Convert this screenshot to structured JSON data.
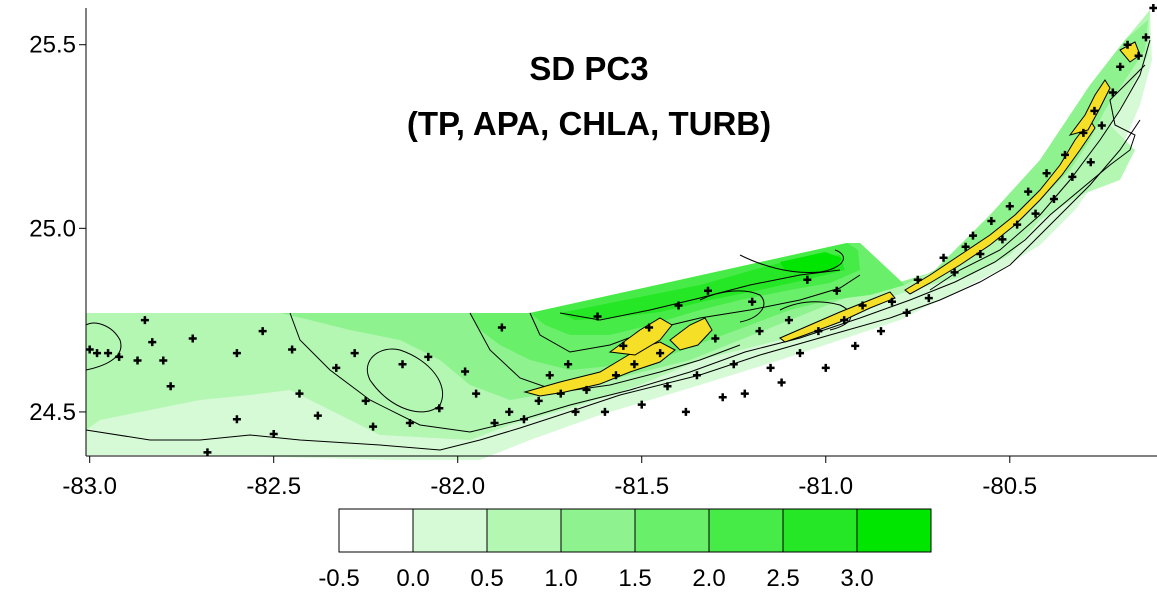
{
  "title": {
    "line1": "SD PC3",
    "line2": "(TP, APA, CHLA, TURB)"
  },
  "axes": {
    "x_ticks": [
      "-83.0",
      "-82.5",
      "-82.0",
      "-81.5",
      "-81.0",
      "-80.5"
    ],
    "x_tick_values": [
      -83.0,
      -82.5,
      -82.0,
      -81.5,
      -81.0,
      -80.5
    ],
    "y_ticks": [
      "25.5",
      "25.0",
      "24.5"
    ],
    "y_tick_values": [
      25.5,
      25.0,
      24.5
    ],
    "xlim": [
      -83.01,
      -80.1
    ],
    "ylim": [
      24.38,
      25.6
    ]
  },
  "legend": {
    "labels": [
      "-0.5",
      "0.0",
      "0.5",
      "1.0",
      "1.5",
      "2.0",
      "2.5",
      "3.0"
    ],
    "colors": [
      "#ffffff",
      "#d6fad6",
      "#b3f7b3",
      "#8ef28e",
      "#6aef6a",
      "#47eb47",
      "#25e725",
      "#00e600"
    ]
  },
  "colors": {
    "land": "#f5e027",
    "station_marker": "#000000"
  },
  "chart_data": {
    "type": "contour-map",
    "stations": [
      [
        -83.0,
        24.67
      ],
      [
        -82.98,
        24.66
      ],
      [
        -82.95,
        24.66
      ],
      [
        -82.92,
        24.65
      ],
      [
        -82.87,
        24.64
      ],
      [
        -82.85,
        24.75
      ],
      [
        -82.83,
        24.69
      ],
      [
        -82.8,
        24.64
      ],
      [
        -82.78,
        24.57
      ],
      [
        -82.72,
        24.7
      ],
      [
        -82.68,
        24.39
      ],
      [
        -82.6,
        24.66
      ],
      [
        -82.6,
        24.48
      ],
      [
        -82.53,
        24.72
      ],
      [
        -82.5,
        24.44
      ],
      [
        -82.45,
        24.67
      ],
      [
        -82.43,
        24.55
      ],
      [
        -82.38,
        24.49
      ],
      [
        -82.33,
        24.62
      ],
      [
        -82.28,
        24.66
      ],
      [
        -82.25,
        24.53
      ],
      [
        -82.23,
        24.46
      ],
      [
        -82.15,
        24.63
      ],
      [
        -82.13,
        24.47
      ],
      [
        -82.08,
        24.65
      ],
      [
        -82.05,
        24.51
      ],
      [
        -81.98,
        24.61
      ],
      [
        -81.95,
        24.55
      ],
      [
        -81.9,
        24.47
      ],
      [
        -81.88,
        24.73
      ],
      [
        -81.86,
        24.5
      ],
      [
        -81.82,
        24.48
      ],
      [
        -81.78,
        24.53
      ],
      [
        -81.75,
        24.6
      ],
      [
        -81.72,
        24.55
      ],
      [
        -81.7,
        24.63
      ],
      [
        -81.68,
        24.5
      ],
      [
        -81.65,
        24.56
      ],
      [
        -81.62,
        24.76
      ],
      [
        -81.6,
        24.5
      ],
      [
        -81.57,
        24.6
      ],
      [
        -81.55,
        24.68
      ],
      [
        -81.52,
        24.63
      ],
      [
        -81.5,
        24.52
      ],
      [
        -81.48,
        24.73
      ],
      [
        -81.45,
        24.66
      ],
      [
        -81.43,
        24.57
      ],
      [
        -81.4,
        24.79
      ],
      [
        -81.38,
        24.5
      ],
      [
        -81.35,
        24.6
      ],
      [
        -81.32,
        24.83
      ],
      [
        -81.3,
        24.7
      ],
      [
        -81.28,
        24.54
      ],
      [
        -81.25,
        24.63
      ],
      [
        -81.22,
        24.55
      ],
      [
        -81.2,
        24.8
      ],
      [
        -81.18,
        24.72
      ],
      [
        -81.15,
        24.62
      ],
      [
        -81.12,
        24.58
      ],
      [
        -81.1,
        24.75
      ],
      [
        -81.07,
        24.66
      ],
      [
        -81.05,
        24.86
      ],
      [
        -81.02,
        24.72
      ],
      [
        -81.0,
        24.62
      ],
      [
        -80.97,
        24.83
      ],
      [
        -80.95,
        24.75
      ],
      [
        -80.92,
        24.68
      ],
      [
        -80.9,
        24.79
      ],
      [
        -80.85,
        24.72
      ],
      [
        -80.82,
        24.8
      ],
      [
        -80.78,
        24.77
      ],
      [
        -80.75,
        24.86
      ],
      [
        -80.72,
        24.81
      ],
      [
        -80.68,
        24.92
      ],
      [
        -80.65,
        24.88
      ],
      [
        -80.62,
        24.95
      ],
      [
        -80.6,
        24.98
      ],
      [
        -80.58,
        24.93
      ],
      [
        -80.55,
        25.02
      ],
      [
        -80.52,
        24.97
      ],
      [
        -80.5,
        25.06
      ],
      [
        -80.48,
        25.01
      ],
      [
        -80.45,
        25.1
      ],
      [
        -80.43,
        25.04
      ],
      [
        -80.4,
        25.15
      ],
      [
        -80.38,
        25.08
      ],
      [
        -80.35,
        25.2
      ],
      [
        -80.33,
        25.14
      ],
      [
        -80.3,
        25.26
      ],
      [
        -80.28,
        25.18
      ],
      [
        -80.27,
        25.32
      ],
      [
        -80.25,
        25.28
      ],
      [
        -80.22,
        25.37
      ],
      [
        -80.2,
        25.44
      ],
      [
        -80.18,
        25.5
      ],
      [
        -80.15,
        25.47
      ],
      [
        -80.13,
        25.52
      ],
      [
        -80.11,
        25.6
      ]
    ]
  }
}
